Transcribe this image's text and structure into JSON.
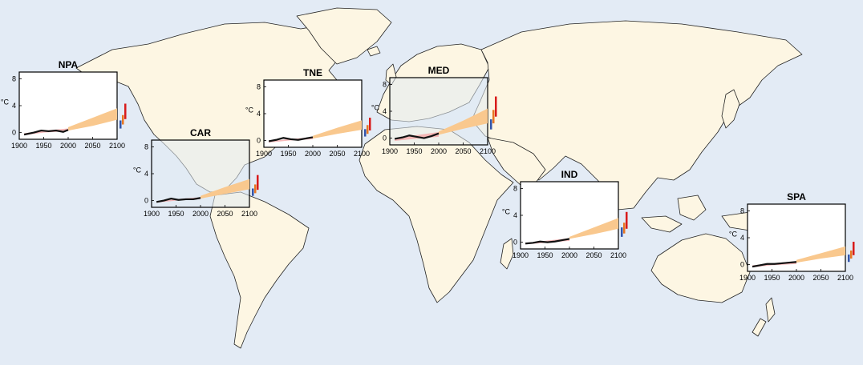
{
  "colors": {
    "ocean": "#e3ebf5",
    "land": "#fdf6e3",
    "coast": "#222222",
    "panel_bg": "#ffffff",
    "panel_bg_translucent": "rgba(225,235,242,0.55)",
    "observed": "#111111",
    "model_envelope": "#f4a8a8",
    "projection_band": "#f9c88e",
    "bar_low": "#3355aa",
    "bar_mid": "#e87722",
    "bar_high": "#d81b1b"
  },
  "map": {
    "icon": "world-map-icon"
  },
  "chart_data": [
    {
      "type": "line",
      "title": "NPA",
      "xlabel": "",
      "ylabel": "°C",
      "xlim": [
        1900,
        2100
      ],
      "ylim": [
        -1,
        9
      ],
      "xticks": [
        "1900",
        "1950",
        "2000",
        "2050",
        "2100"
      ],
      "yticks": [
        "0",
        "4",
        "8"
      ],
      "observed": {
        "x": [
          1910,
          1930,
          1945,
          1960,
          1975,
          1990,
          2000
        ],
        "y": [
          -0.3,
          0.0,
          0.3,
          0.2,
          0.3,
          0.1,
          0.4
        ]
      },
      "model_envelope": {
        "x": [
          1910,
          1950,
          2000
        ],
        "lower": [
          -0.4,
          0.0,
          0.2
        ],
        "upper": [
          -0.1,
          0.3,
          0.6
        ]
      },
      "projection": {
        "x": [
          2000,
          2050,
          2100
        ],
        "lower": [
          0.3,
          1.0,
          1.9
        ],
        "upper": [
          0.8,
          2.2,
          3.6
        ]
      },
      "bars": {
        "low": [
          0.6,
          1.8
        ],
        "mid": [
          1.2,
          2.6
        ],
        "high": [
          2.0,
          4.3
        ]
      }
    },
    {
      "type": "line",
      "title": "CAR",
      "xlabel": "",
      "ylabel": "°C",
      "xlim": [
        1900,
        2100
      ],
      "ylim": [
        -1,
        9
      ],
      "xticks": [
        "1900",
        "1950",
        "2000",
        "2050",
        "2100"
      ],
      "yticks": [
        "0",
        "4",
        "8"
      ],
      "observed": {
        "x": [
          1910,
          1925,
          1940,
          1955,
          1970,
          1985,
          2000
        ],
        "y": [
          -0.2,
          0.0,
          0.3,
          0.1,
          0.2,
          0.2,
          0.4
        ]
      },
      "model_envelope": {
        "x": [
          1910,
          1950,
          2000
        ],
        "lower": [
          -0.3,
          0.0,
          0.2
        ],
        "upper": [
          -0.1,
          0.2,
          0.5
        ]
      },
      "projection": {
        "x": [
          2000,
          2050,
          2100
        ],
        "lower": [
          0.3,
          1.0,
          1.7
        ],
        "upper": [
          0.7,
          2.0,
          3.2
        ]
      },
      "bars": {
        "low": [
          0.7,
          1.8
        ],
        "mid": [
          1.1,
          2.4
        ],
        "high": [
          1.6,
          3.8
        ]
      }
    },
    {
      "type": "line",
      "title": "TNE",
      "xlabel": "",
      "ylabel": "°C",
      "xlim": [
        1900,
        2100
      ],
      "ylim": [
        -1,
        9
      ],
      "xticks": [
        "1900",
        "1950",
        "2000",
        "2050",
        "2100"
      ],
      "yticks": [
        "0",
        "4",
        "8"
      ],
      "observed": {
        "x": [
          1910,
          1925,
          1940,
          1955,
          1970,
          1985,
          2000
        ],
        "y": [
          -0.1,
          0.1,
          0.4,
          0.2,
          0.1,
          0.3,
          0.5
        ]
      },
      "model_envelope": {
        "x": [
          1910,
          1950,
          2000
        ],
        "lower": [
          -0.3,
          0.0,
          0.2
        ],
        "upper": [
          -0.1,
          0.2,
          0.5
        ]
      },
      "projection": {
        "x": [
          2000,
          2050,
          2100
        ],
        "lower": [
          0.3,
          1.0,
          1.6
        ],
        "upper": [
          0.7,
          1.9,
          3.0
        ]
      },
      "bars": {
        "low": [
          0.6,
          1.7
        ],
        "mid": [
          1.0,
          2.3
        ],
        "high": [
          1.5,
          3.4
        ]
      }
    },
    {
      "type": "line",
      "title": "MED",
      "xlabel": "",
      "ylabel": "°C",
      "xlim": [
        1900,
        2100
      ],
      "ylim": [
        -1,
        9
      ],
      "xticks": [
        "1900",
        "1950",
        "2000",
        "2050",
        "2100"
      ],
      "yticks": [
        "0",
        "4",
        "8"
      ],
      "observed": {
        "x": [
          1910,
          1925,
          1940,
          1955,
          1970,
          1985,
          2000
        ],
        "y": [
          -0.1,
          0.1,
          0.4,
          0.2,
          0.0,
          0.3,
          0.7
        ]
      },
      "model_envelope": {
        "x": [
          1910,
          1950,
          2000
        ],
        "lower": [
          -0.4,
          -0.1,
          0.2
        ],
        "upper": [
          0.0,
          0.4,
          0.9
        ]
      },
      "projection": {
        "x": [
          2000,
          2050,
          2100
        ],
        "lower": [
          0.5,
          1.4,
          2.2
        ],
        "upper": [
          1.0,
          2.6,
          4.4
        ]
      },
      "bars": {
        "low": [
          1.3,
          2.8
        ],
        "mid": [
          2.2,
          4.2
        ],
        "high": [
          3.2,
          6.2
        ]
      }
    },
    {
      "type": "line",
      "title": "IND",
      "xlabel": "",
      "ylabel": "°C",
      "xlim": [
        1900,
        2100
      ],
      "ylim": [
        -1,
        9
      ],
      "xticks": [
        "1900",
        "1950",
        "2000",
        "2050",
        "2100"
      ],
      "yticks": [
        "0",
        "4",
        "8"
      ],
      "observed": {
        "x": [
          1910,
          1925,
          1940,
          1955,
          1970,
          1985,
          2000
        ],
        "y": [
          -0.2,
          -0.1,
          0.1,
          0.0,
          0.1,
          0.3,
          0.5
        ]
      },
      "model_envelope": {
        "x": [
          1910,
          1950,
          2000
        ],
        "lower": [
          -0.3,
          -0.1,
          0.2
        ],
        "upper": [
          -0.1,
          0.2,
          0.6
        ]
      },
      "projection": {
        "x": [
          2000,
          2050,
          2100
        ],
        "lower": [
          0.5,
          1.2,
          2.0
        ],
        "upper": [
          0.8,
          2.2,
          3.6
        ]
      },
      "bars": {
        "low": [
          0.8,
          2.2
        ],
        "mid": [
          1.3,
          2.9
        ],
        "high": [
          2.0,
          4.5
        ]
      }
    },
    {
      "type": "line",
      "title": "SPA",
      "xlabel": "",
      "ylabel": "°C",
      "xlim": [
        1900,
        2100
      ],
      "ylim": [
        -1,
        9
      ],
      "xticks": [
        "1900",
        "1950",
        "2000",
        "2050",
        "2100"
      ],
      "yticks": [
        "0",
        "4",
        "8"
      ],
      "observed": {
        "x": [
          1910,
          1925,
          1940,
          1955,
          1970,
          1985,
          2000
        ],
        "y": [
          -0.3,
          -0.1,
          0.1,
          0.1,
          0.2,
          0.3,
          0.4
        ]
      },
      "model_envelope": {
        "x": [
          1910,
          1950,
          2000
        ],
        "lower": [
          -0.4,
          -0.1,
          0.1
        ],
        "upper": [
          -0.1,
          0.2,
          0.5
        ]
      },
      "projection": {
        "x": [
          2000,
          2050,
          2100
        ],
        "lower": [
          0.3,
          0.9,
          1.4
        ],
        "upper": [
          0.7,
          1.7,
          2.7
        ]
      },
      "bars": {
        "low": [
          0.4,
          1.5
        ],
        "mid": [
          0.9,
          2.1
        ],
        "high": [
          1.4,
          3.4
        ]
      }
    }
  ]
}
